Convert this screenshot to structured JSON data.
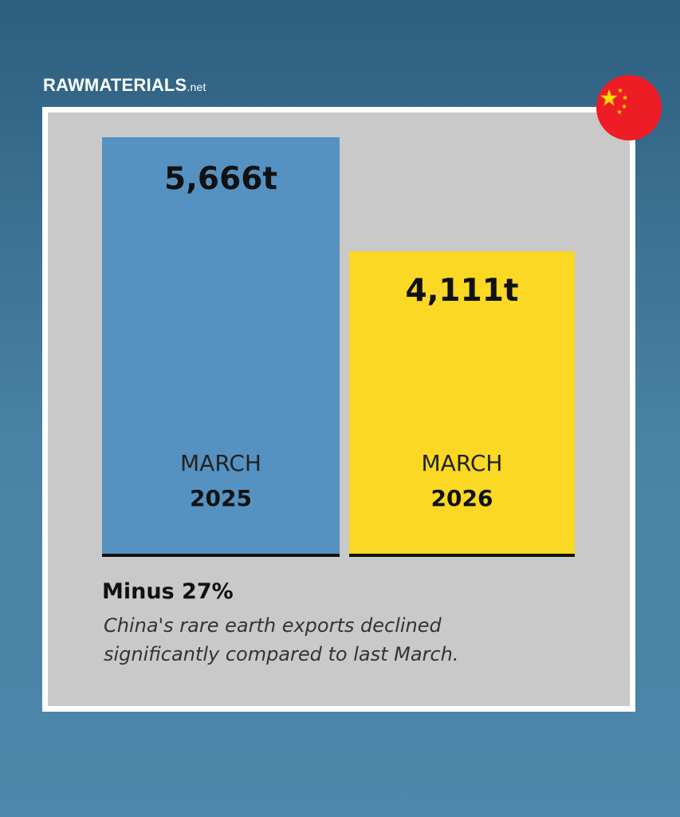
{
  "brand": {
    "name": "RAWMATERIALS",
    "suffix": ".net"
  },
  "flag": {
    "icon": "china-flag-icon",
    "background_color": "#ee1c25",
    "star_color": "#ffde00"
  },
  "chart_data": {
    "type": "bar",
    "title": "",
    "unit": "t",
    "categories": [
      "MARCH 2025",
      "MARCH 2026"
    ],
    "values": [
      5666,
      4111
    ],
    "value_labels": [
      "5,666t",
      "4,111t"
    ],
    "months": [
      "MARCH",
      "MARCH"
    ],
    "years": [
      "2025",
      "2026"
    ],
    "colors": [
      "#5592c1",
      "#fad824"
    ],
    "ylim": [
      0,
      5666
    ],
    "grid": false
  },
  "summary": {
    "headline": "Minus 27%",
    "caption": "China's rare earth exports declined significantly compared to last March."
  }
}
